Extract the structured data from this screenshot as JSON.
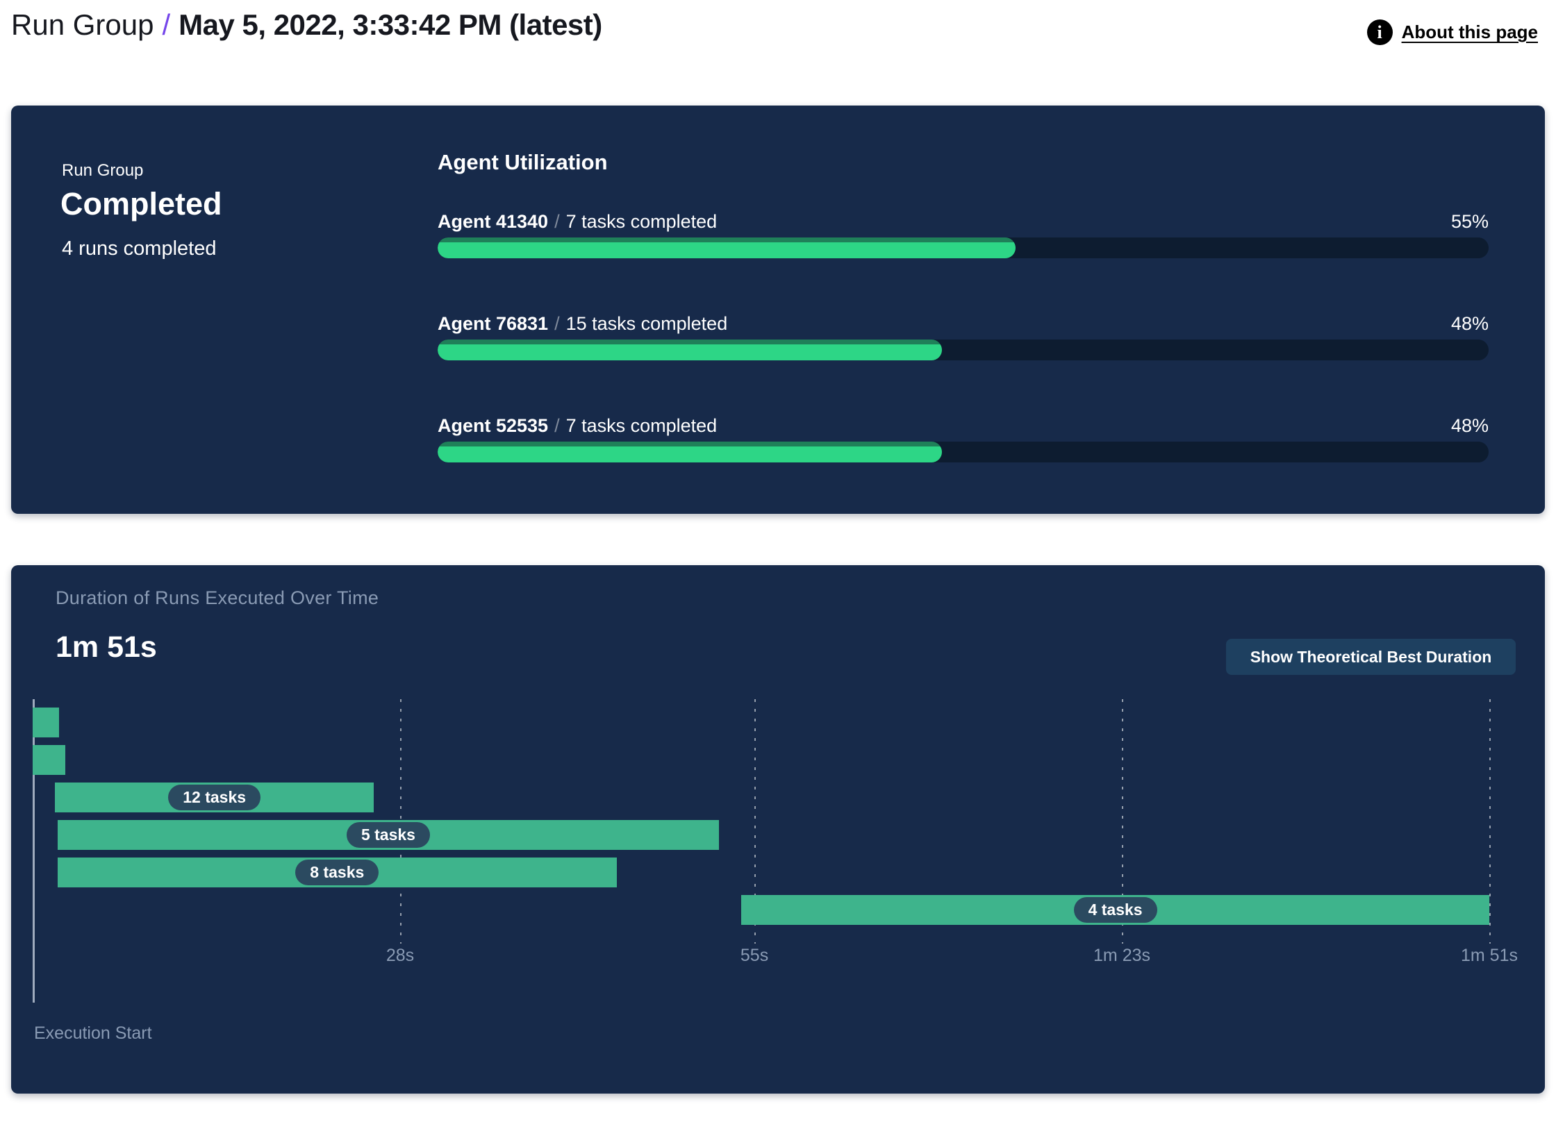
{
  "header": {
    "breadcrumb_root": "Run Group",
    "separator": "/",
    "title": "May 5, 2022, 3:33:42 PM (latest)",
    "about_link": "About this page",
    "info_icon_glyph": "i",
    "accent_color": "#7445EA"
  },
  "status_panel": {
    "label": "Run Group",
    "status": "Completed",
    "subtext": "4 runs completed"
  },
  "agent_utilization": {
    "heading": "Agent Utilization",
    "separator": "/",
    "fill_color": "#2DD686",
    "track_color": "#0D1C30",
    "agents": [
      {
        "name": "Agent 41340",
        "tasks": "7 tasks completed",
        "percent": 55,
        "percent_label": "55%"
      },
      {
        "name": "Agent 76831",
        "tasks": "15 tasks completed",
        "percent": 48,
        "percent_label": "48%"
      },
      {
        "name": "Agent 52535",
        "tasks": "7 tasks completed",
        "percent": 48,
        "percent_label": "48%"
      }
    ]
  },
  "duration_panel": {
    "title": "Duration of Runs Executed Over Time",
    "total_duration": "1m 51s",
    "button_label": "Show Theoretical Best Duration",
    "axis_label": "Execution Start"
  },
  "chart_data": {
    "type": "gantt",
    "title": "Duration of Runs Executed Over Time",
    "total_duration_label": "1m 51s",
    "x_range_seconds": [
      0,
      111
    ],
    "x_ticks": [
      {
        "label": "28s",
        "seconds": 28
      },
      {
        "label": "55s",
        "seconds": 55
      },
      {
        "label": "1m 23s",
        "seconds": 83
      },
      {
        "label": "1m 51s",
        "seconds": 111
      }
    ],
    "bars": [
      {
        "label": "",
        "start_s": 0,
        "end_s": 2
      },
      {
        "label": "",
        "start_s": 0,
        "end_s": 2.5
      },
      {
        "label": "12 tasks",
        "start_s": 1.7,
        "end_s": 26
      },
      {
        "label": "5 tasks",
        "start_s": 1.9,
        "end_s": 52.3
      },
      {
        "label": "8 tasks",
        "start_s": 1.9,
        "end_s": 44.5
      },
      {
        "label": "4 tasks",
        "start_s": 54,
        "end_s": 111
      }
    ],
    "bar_color": "#3EB48C",
    "label_pill_color": "#2B4A60",
    "grid": "dashed-vertical",
    "legend": "none"
  }
}
